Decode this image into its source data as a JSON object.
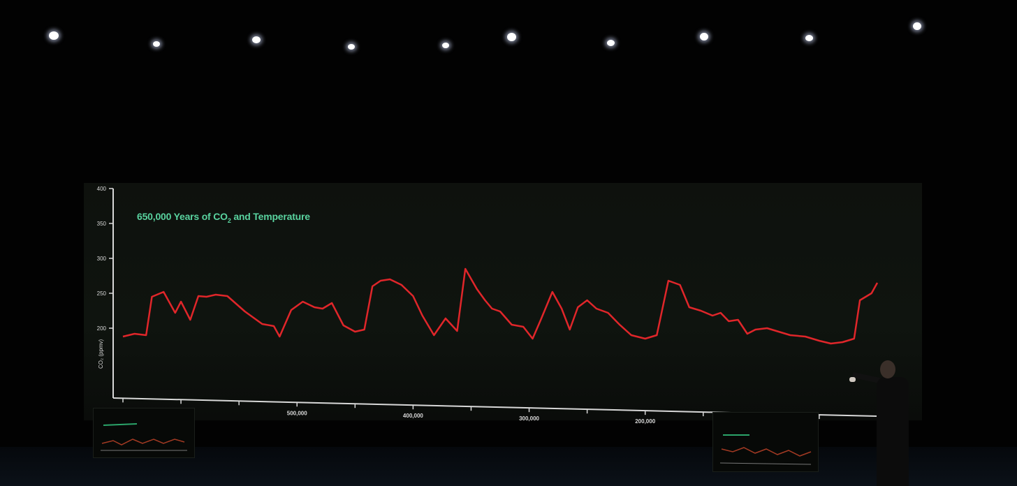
{
  "scene": {
    "description_type": "stage-presentation",
    "colors": {
      "background": "#020202",
      "title": "#59d39f",
      "line": "#e0262a",
      "axis": "#d8d8d8"
    }
  },
  "chart_data": {
    "type": "line",
    "title_main": "650,000 Years of CO",
    "title_sub": "2",
    "title_end": " and Temperature",
    "ylabel": "CO₂ (ppmv)",
    "xlabel": "",
    "y_ticks": [
      "400",
      "350",
      "300",
      "250",
      "200"
    ],
    "y_tick_values": [
      400,
      350,
      300,
      250,
      200
    ],
    "x_ticks": [
      "500,000",
      "400,000",
      "300,000",
      "200,000"
    ],
    "x_tick_values": [
      500000,
      400000,
      300000,
      200000
    ],
    "xlim": [
      650000,
      0
    ],
    "ylim": [
      150,
      400
    ],
    "x_direction": "years-before-present-decreasing",
    "series": [
      {
        "x": [
          650000,
          640000,
          630000,
          625000,
          615000,
          605000,
          600000,
          592000,
          585000,
          578000,
          570000,
          560000,
          545000,
          530000,
          520000,
          515000,
          505000,
          495000,
          485000,
          478000,
          470000,
          460000,
          450000,
          442000,
          435000,
          428000,
          420000,
          410000,
          400000,
          392000,
          382000,
          372000,
          362000,
          355000,
          345000,
          338000,
          332000,
          325000,
          315000,
          305000,
          297000,
          290000,
          280000,
          272000,
          265000,
          258000,
          250000,
          242000,
          232000,
          222000,
          212000,
          200000,
          190000,
          180000,
          170000,
          162000,
          152000,
          142000,
          135000,
          128000,
          120000,
          112000,
          105000,
          95000,
          85000,
          75000,
          62000,
          50000,
          40000,
          30000,
          20000,
          15000,
          10000,
          5000,
          0
        ],
        "y": [
          188,
          192,
          190,
          245,
          252,
          222,
          238,
          212,
          246,
          245,
          248,
          246,
          224,
          206,
          203,
          188,
          226,
          238,
          230,
          228,
          236,
          204,
          195,
          198,
          260,
          268,
          270,
          262,
          246,
          218,
          190,
          214,
          196,
          285,
          256,
          240,
          228,
          224,
          205,
          202,
          185,
          212,
          252,
          228,
          198,
          230,
          240,
          228,
          222,
          205,
          190,
          185,
          190,
          268,
          262,
          230,
          225,
          218,
          222,
          210,
          212,
          192,
          198,
          200,
          195,
          190,
          188,
          182,
          178,
          180,
          185,
          240,
          245,
          250,
          265
        ]
      }
    ]
  }
}
